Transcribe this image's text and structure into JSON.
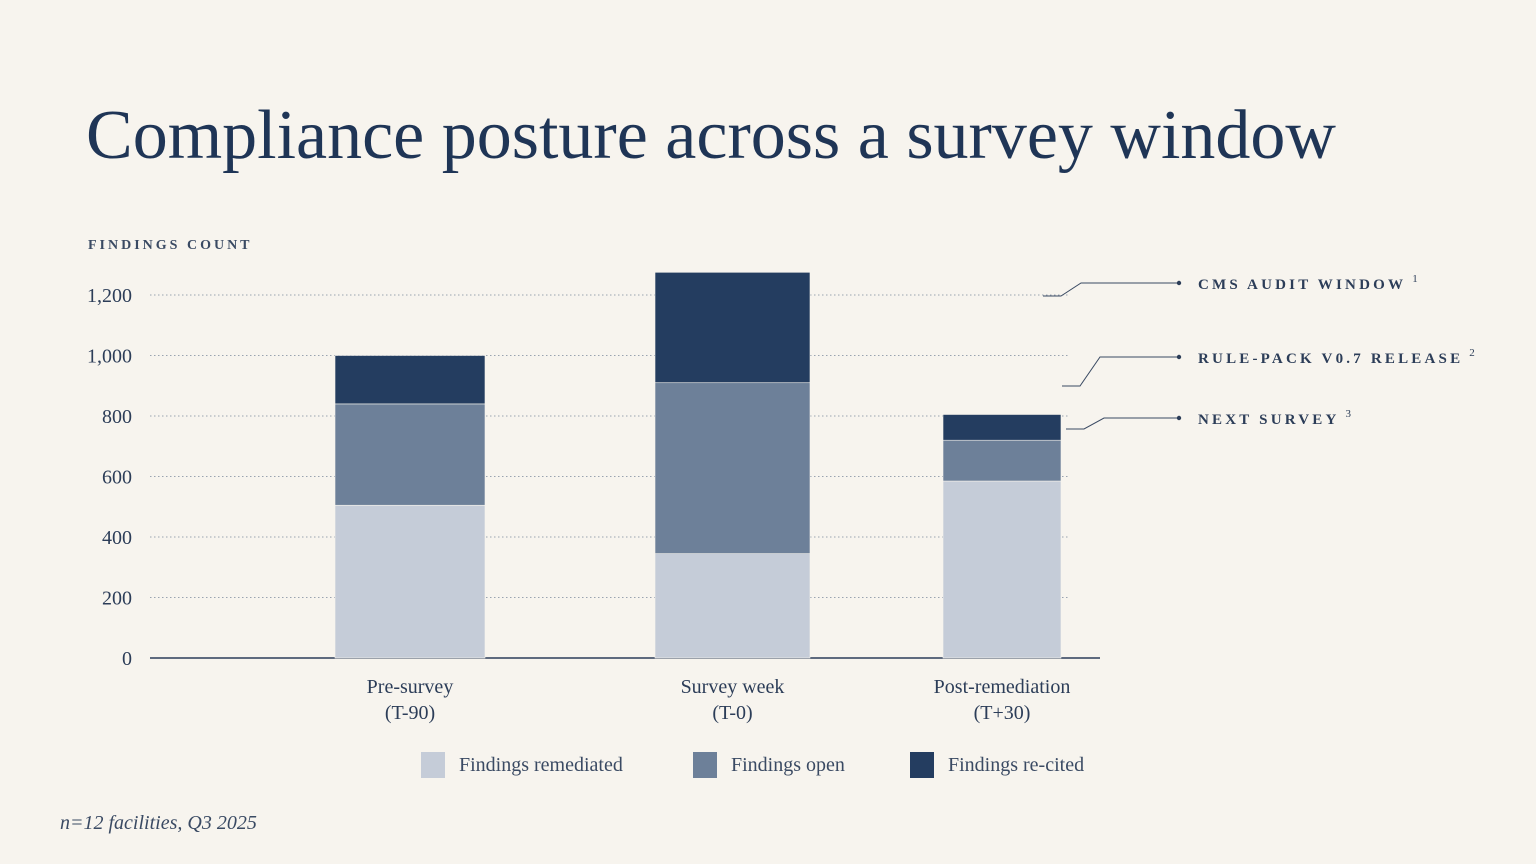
{
  "title": "Compliance posture across a survey window",
  "footnote": "n=12 facilities,  Q3 2025",
  "chart_data": {
    "type": "bar",
    "stacked": true,
    "title": "Compliance posture across a survey window",
    "ylabel": "FINDINGS COUNT",
    "xlabel": "",
    "ylim": [
      0,
      1200
    ],
    "yticks": [
      0,
      200,
      400,
      600,
      800,
      1000,
      1200
    ],
    "ytick_labels": [
      "0",
      "200",
      "400",
      "600",
      "800",
      "1,000",
      "1,200"
    ],
    "grid": true,
    "categories": [
      [
        "Pre-survey",
        "(T-90)"
      ],
      [
        "Survey week",
        "(T-0)"
      ],
      [
        "Post-remediation",
        "(T+30)"
      ]
    ],
    "series": [
      {
        "name": "Findings remediated",
        "color": "#c5ccd8",
        "values": [
          505,
          345,
          585
        ]
      },
      {
        "name": "Findings open",
        "color": "#6d8099",
        "values": [
          335,
          565,
          135
        ]
      },
      {
        "name": "Findings re-cited",
        "color": "#243d60",
        "values": [
          160,
          365,
          85
        ]
      }
    ],
    "annotations": [
      {
        "label": "CMS AUDIT WINDOW",
        "note": "1",
        "value": 1200
      },
      {
        "label": "RULE-PACK V0.7 RELEASE",
        "note": "2",
        "value": 900
      },
      {
        "label": "NEXT SURVEY",
        "note": "3",
        "value": 760
      }
    ],
    "legend_position": "bottom"
  }
}
